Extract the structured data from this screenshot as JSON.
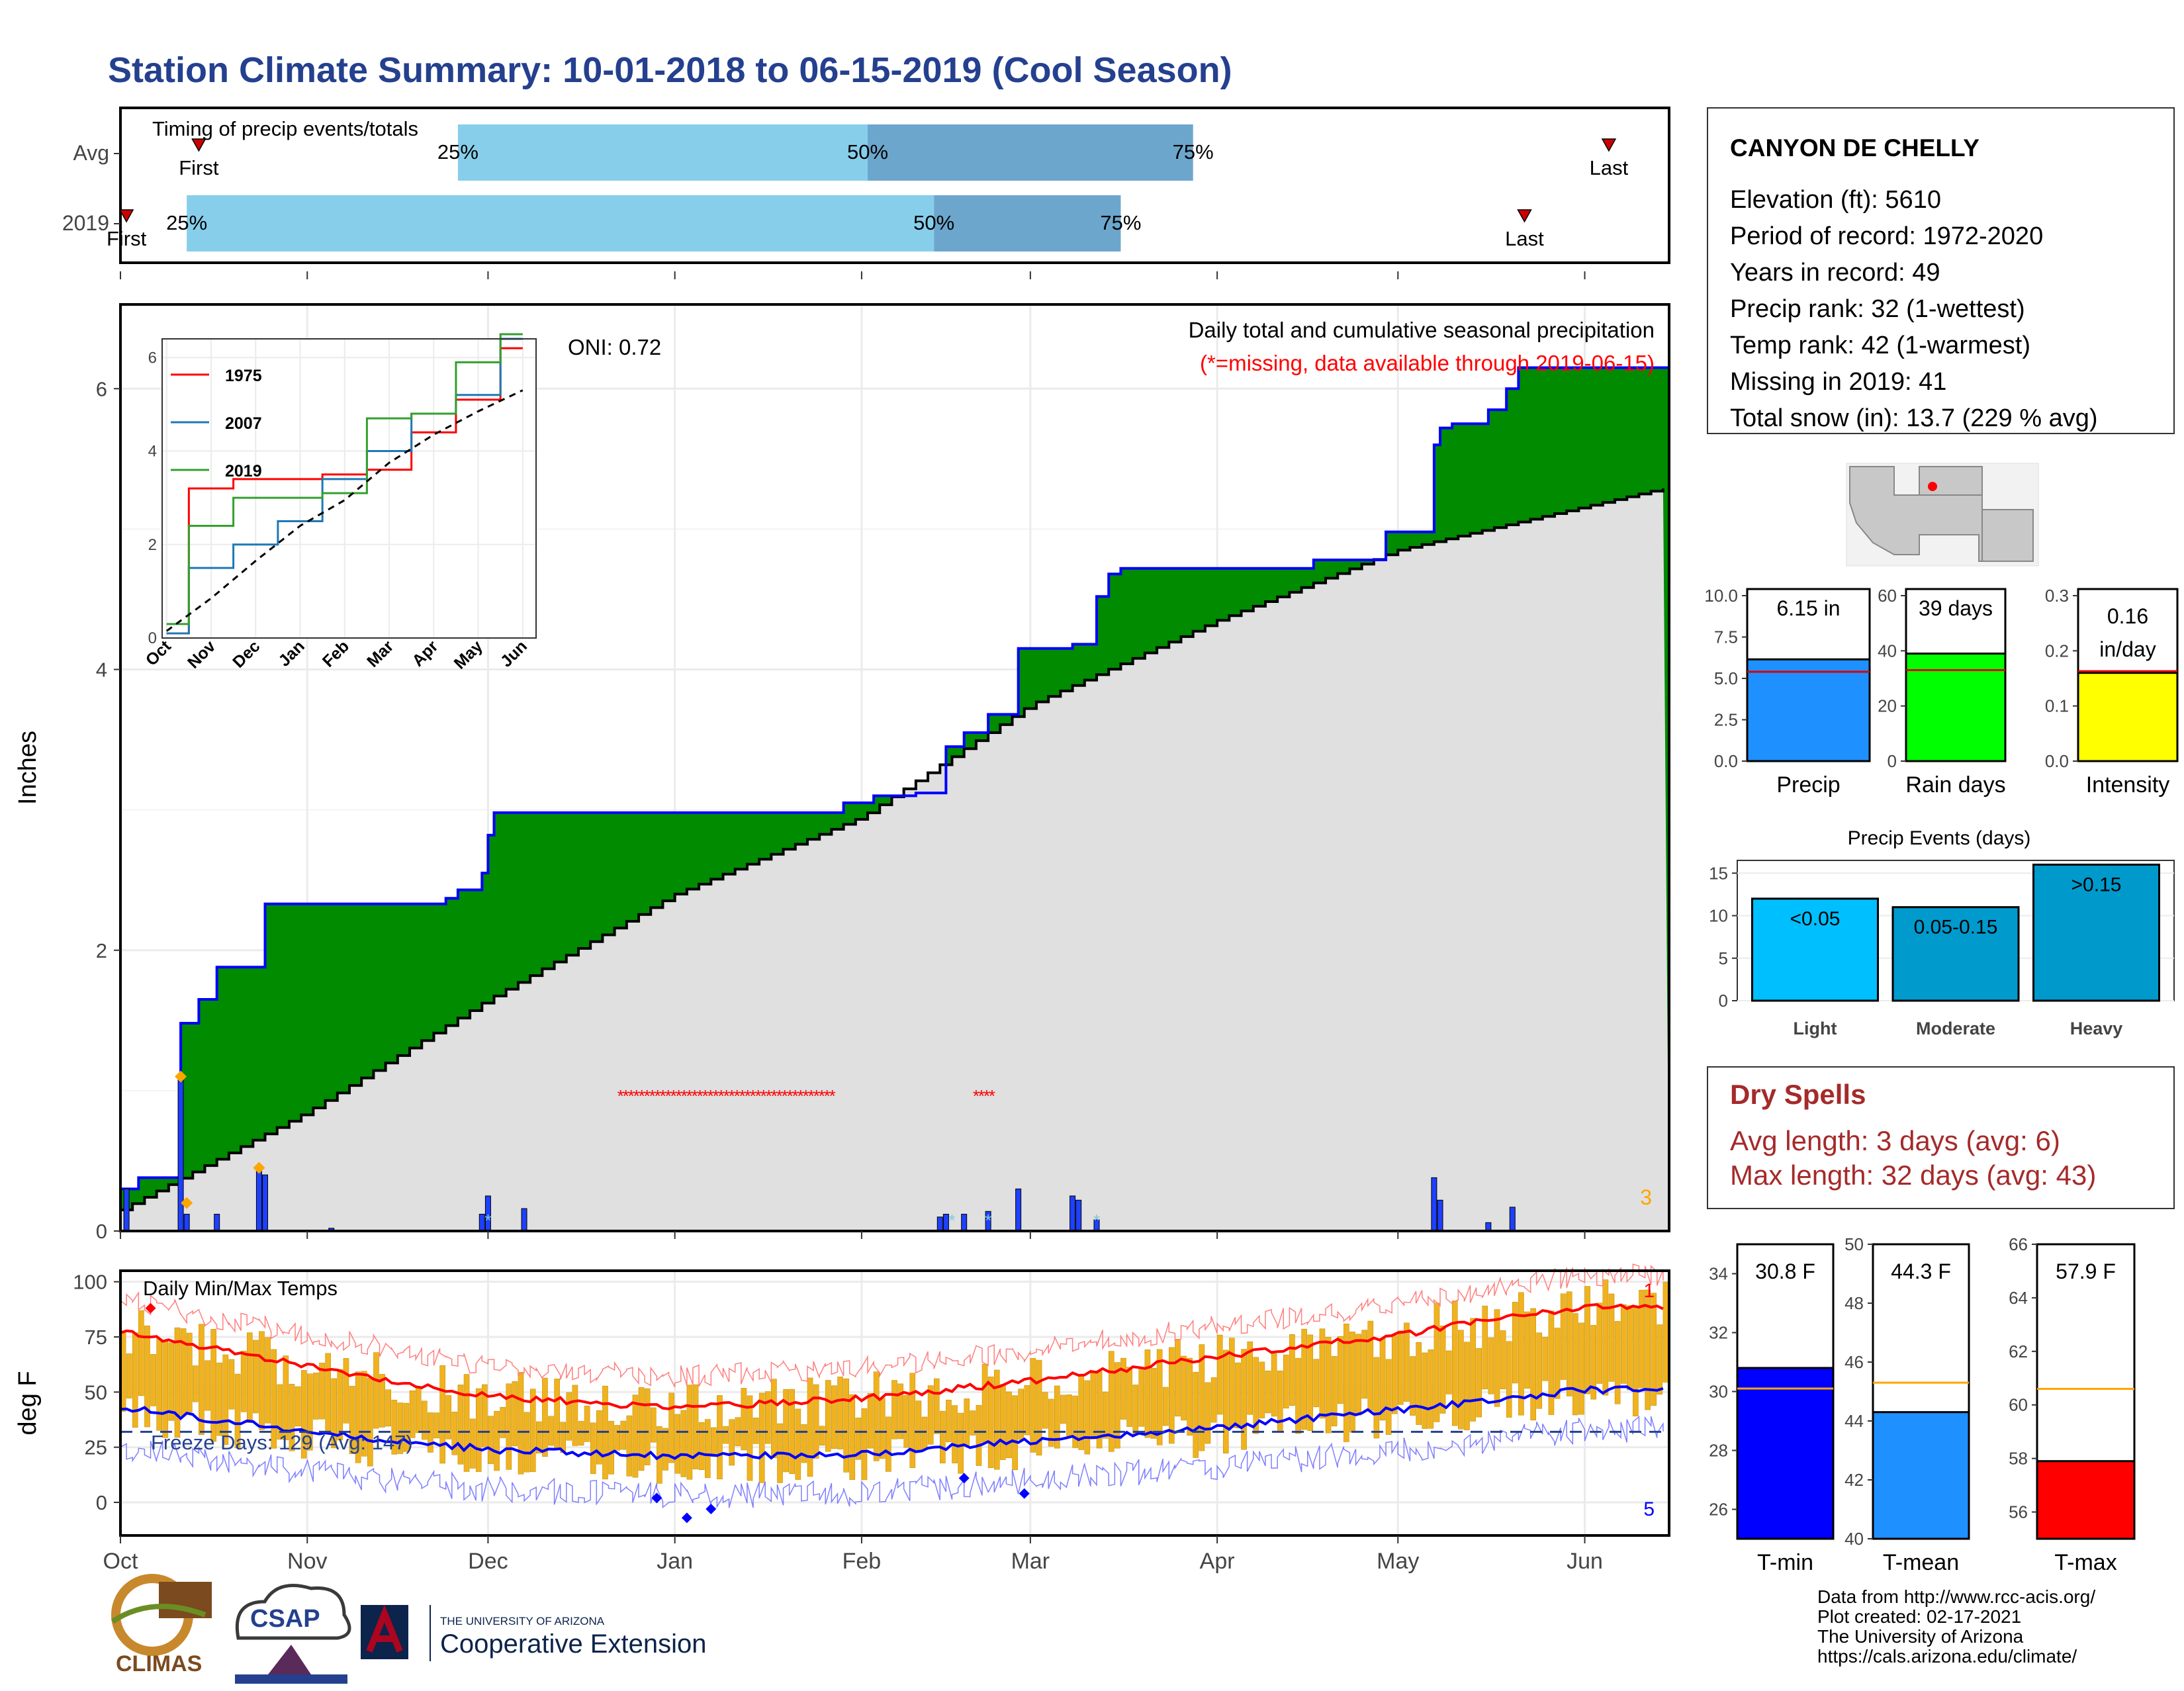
{
  "title": "Station Climate Summary: 10-01-2018 to 06-15-2019 (Cool Season)",
  "colors": {
    "title": "#24408E",
    "light_blue": "#87CEEB",
    "mid_blue": "#6CA6CD",
    "green": "#008B00",
    "gray_fill": "#E0E0E0",
    "blue_line": "#0000FF",
    "red": "#FF0000",
    "orange": "#FFA500",
    "temp_bar": "#F0B21F",
    "dark_red_text": "#A52A2A"
  },
  "timing": {
    "label": "Timing of precip events/totals",
    "rows": [
      {
        "name": "Avg",
        "first_label": "First",
        "last_label": "Last",
        "first_date": "2018-10-14",
        "p25": "2018-11-26",
        "p50": "2019-02-02",
        "p75": "2019-03-28",
        "last_date": "2019-06-05"
      },
      {
        "name": "2019",
        "first_label": "First",
        "last_label": "Last",
        "first_date": "2018-10-02",
        "p25": "2018-10-12",
        "p50": "2019-02-13",
        "p75": "2019-03-16",
        "last_date": "2019-05-22"
      }
    ],
    "pct_labels": [
      "25%",
      "50%",
      "75%"
    ]
  },
  "precip_chart": {
    "ylabel": "Inches",
    "annotation_title": "Daily total and cumulative seasonal precipitation",
    "annotation_missing": "(*=missing, data available through 2019-06-15)",
    "oni": "ONI: 0.72",
    "corner_count": "3",
    "yticks": [
      "0",
      "2",
      "4",
      "6"
    ]
  },
  "inset": {
    "legend": [
      "1975",
      "2007",
      "2019"
    ],
    "legend_colors": [
      "#FF0000",
      "#1F78B4",
      "#33A02C"
    ],
    "yticks": [
      "0",
      "2",
      "4",
      "6"
    ],
    "months": [
      "Oct",
      "Nov",
      "Dec",
      "Jan",
      "Feb",
      "Mar",
      "Apr",
      "May",
      "Jun"
    ]
  },
  "temp_chart": {
    "label": "Daily Min/Max Temps",
    "ylabel": "deg F",
    "freeze_label": "Freeze Days: 129 (Avg: 147)",
    "yticks": [
      "0",
      "25",
      "50",
      "75",
      "100"
    ],
    "corner_top": "1",
    "corner_bottom": "5"
  },
  "x_months": [
    "Oct",
    "Nov",
    "Dec",
    "Jan",
    "Feb",
    "Mar",
    "Apr",
    "May",
    "Jun"
  ],
  "station": {
    "name": "CANYON DE CHELLY",
    "lines": [
      "Elevation (ft): 5610",
      "Period of record: 1972-2020",
      "Years in record: 49",
      "Precip rank: 32 (1-wettest)",
      "Temp rank: 42 (1-warmest)",
      "Missing in 2019: 41",
      "Total snow (in): 13.7 (229 % avg)"
    ]
  },
  "mini_bars": [
    {
      "name": "Precip",
      "value_label": "6.15 in",
      "value": 6.15,
      "avg": 5.4,
      "max": 10.0,
      "yticks": [
        "0.0",
        "2.5",
        "5.0",
        "7.5",
        "10.0"
      ],
      "color": "#1E90FF"
    },
    {
      "name": "Rain days",
      "value_label": "39 days",
      "value": 39,
      "avg": 33,
      "max": 60,
      "yticks": [
        "0",
        "20",
        "40",
        "60"
      ],
      "color": "#00FF00"
    },
    {
      "name": "Intensity",
      "value_label": "0.16 in/day",
      "value": 0.16,
      "avg": 0.163,
      "max": 0.3,
      "yticks": [
        "0.0",
        "0.1",
        "0.2",
        "0.3"
      ],
      "color": "#FFFF00"
    }
  ],
  "precip_events": {
    "title": "Precip Events (days)",
    "yticks": [
      "0",
      "5",
      "10",
      "15"
    ],
    "categories": [
      "Light",
      "Moderate",
      "Heavy"
    ],
    "bar_labels": [
      "<0.05",
      "0.05-0.15",
      ">0.15"
    ],
    "values": [
      12,
      11,
      16
    ],
    "colors": [
      "#00BFFF",
      "#009ACD",
      "#0099CC"
    ]
  },
  "dry_spells": {
    "title": "Dry Spells",
    "lines": [
      "Avg length: 3 days (avg: 6)",
      "Max length: 32 days (avg: 43)"
    ]
  },
  "temp_bars": [
    {
      "name": "T-min",
      "value_label": "30.8 F",
      "value": 30.8,
      "avg": 30.1,
      "min": 25,
      "max": 35,
      "yticks": [
        "26",
        "28",
        "30",
        "32",
        "34"
      ],
      "color": "#0000FF"
    },
    {
      "name": "T-mean",
      "value_label": "44.3 F",
      "value": 44.3,
      "avg": 45.3,
      "min": 40,
      "max": 50,
      "yticks": [
        "40",
        "42",
        "44",
        "46",
        "48",
        "50"
      ],
      "color": "#1E90FF"
    },
    {
      "name": "T-max",
      "value_label": "57.9 F",
      "value": 57.9,
      "avg": 60.6,
      "min": 55,
      "max": 66,
      "yticks": [
        "56",
        "58",
        "60",
        "62",
        "64",
        "66"
      ],
      "color": "#FF0000"
    }
  ],
  "footer": {
    "lines": [
      "Data from http://www.rcc-acis.org/",
      "Plot created: 02-17-2021",
      "The University of Arizona",
      "https://cals.arizona.edu/climate/"
    ]
  },
  "logos": {
    "climas": "CLIMAS",
    "csap": "CSAP",
    "ua_small": "THE UNIVERSITY OF ARIZONA",
    "ua_big": "Cooperative Extension"
  },
  "chart_data": [
    {
      "type": "line",
      "title": "Daily total and cumulative seasonal precipitation",
      "ylabel": "Inches",
      "ylim": [
        0,
        6.6
      ],
      "x_range": [
        "2018-10-01",
        "2019-06-15"
      ],
      "series": [
        {
          "x": [
            "2018-10-01",
            "2018-10-04",
            "2018-10-10",
            "2018-10-11",
            "2018-10-14",
            "2018-10-17",
            "2018-10-23",
            "2018-10-25",
            "2018-11-24",
            "2018-11-26",
            "2018-11-30",
            "2018-12-01",
            "2018-12-02",
            "2018-12-07",
            "2019-01-29",
            "2019-02-03",
            "2019-02-10",
            "2019-02-15",
            "2019-02-18",
            "2019-02-22",
            "2019-02-24",
            "2019-02-27",
            "2019-03-08",
            "2019-03-12",
            "2019-03-14",
            "2019-03-16",
            "2019-04-17",
            "2019-04-29",
            "2019-05-07",
            "2019-05-08",
            "2019-05-10",
            "2019-05-16",
            "2019-05-19",
            "2019-05-21",
            "2019-06-15"
          ],
          "values": [
            0.3,
            0.38,
            0.38,
            1.48,
            1.65,
            1.88,
            1.88,
            2.33,
            2.37,
            2.43,
            2.55,
            2.82,
            2.98,
            2.98,
            3.05,
            3.1,
            3.12,
            3.45,
            3.55,
            3.68,
            3.68,
            4.15,
            4.18,
            4.52,
            4.68,
            4.72,
            4.78,
            4.98,
            5.6,
            5.72,
            5.75,
            5.85,
            6.0,
            6.15,
            6.15
          ]
        },
        {
          "name": "Avg",
          "x": [
            "2018-10-01",
            "2018-11-01",
            "2018-12-01",
            "2019-01-01",
            "2019-02-01",
            "2019-03-01",
            "2019-04-01",
            "2019-05-01",
            "2019-06-15"
          ],
          "values": [
            0.15,
            0.85,
            1.65,
            2.4,
            2.95,
            3.75,
            4.35,
            4.85,
            5.3
          ]
        }
      ],
      "missing_dates": [
        "2018-12-23 to 2019-01-28",
        "2019-02-20 to 2019-02-22"
      ],
      "daily_bars": {
        "x": [
          "2018-10-02",
          "2018-10-11",
          "2018-10-12",
          "2018-10-17",
          "2018-10-24",
          "2018-10-25",
          "2018-11-05",
          "2018-11-30",
          "2018-12-01",
          "2018-12-07",
          "2019-02-14",
          "2019-02-15",
          "2019-02-18",
          "2019-02-22",
          "2019-02-27",
          "2019-03-08",
          "2019-03-09",
          "2019-03-12",
          "2019-05-07",
          "2019-05-08",
          "2019-05-16",
          "2019-05-20"
        ],
        "values": [
          0.3,
          1.1,
          0.12,
          0.12,
          0.45,
          0.4,
          0.02,
          0.12,
          0.25,
          0.16,
          0.1,
          0.12,
          0.12,
          0.14,
          0.3,
          0.25,
          0.22,
          0.08,
          0.38,
          0.22,
          0.06,
          0.17
        ]
      }
    },
    {
      "type": "line",
      "xlabel": "",
      "ylim": [
        0,
        6.4
      ],
      "series": [
        {
          "name": "1975",
          "x": [
            "Oct",
            "Nov",
            "Dec",
            "Jan",
            "Feb",
            "Mar",
            "Apr",
            "May",
            "Jun"
          ],
          "values": [
            0.1,
            3.2,
            3.4,
            3.4,
            3.5,
            3.6,
            4.4,
            5.1,
            6.2
          ]
        },
        {
          "name": "2007",
          "x": [
            "Oct",
            "Nov",
            "Dec",
            "Jan",
            "Feb",
            "Mar",
            "Apr",
            "May",
            "Jun"
          ],
          "values": [
            0.1,
            1.5,
            2.0,
            2.5,
            3.4,
            4.0,
            4.8,
            5.2,
            6.4
          ]
        },
        {
          "name": "2019",
          "x": [
            "Oct",
            "Nov",
            "Dec",
            "Jan",
            "Feb",
            "Mar",
            "Apr",
            "May",
            "Jun"
          ],
          "values": [
            0.3,
            2.4,
            3.0,
            3.0,
            3.1,
            4.7,
            4.8,
            5.9,
            6.5
          ]
        }
      ]
    },
    {
      "type": "bar",
      "title": "Daily Min/Max Temps",
      "ylabel": "deg F",
      "ylim": [
        -15,
        105
      ],
      "freeze_threshold": 32,
      "series": [
        {
          "name": "avg_max",
          "x": [
            "Oct",
            "Nov",
            "Dec",
            "Jan",
            "Feb",
            "Mar",
            "Apr",
            "May",
            "Jun"
          ],
          "values": [
            78,
            62,
            48,
            43,
            47,
            55,
            66,
            76,
            89
          ]
        },
        {
          "name": "avg_min",
          "x": [
            "Oct",
            "Nov",
            "Dec",
            "Jan",
            "Feb",
            "Mar",
            "Apr",
            "May",
            "Jun"
          ],
          "values": [
            43,
            32,
            24,
            21,
            22,
            28,
            34,
            42,
            51
          ]
        }
      ]
    },
    {
      "type": "bar",
      "categories": [
        "Precip",
        "Rain days",
        "Intensity"
      ],
      "values": [
        6.15,
        39,
        0.16
      ]
    },
    {
      "type": "bar",
      "title": "Precip Events (days)",
      "categories": [
        "Light",
        "Moderate",
        "Heavy"
      ],
      "values": [
        12,
        11,
        16
      ]
    },
    {
      "type": "bar",
      "categories": [
        "T-min",
        "T-mean",
        "T-max"
      ],
      "values": [
        30.8,
        44.3,
        57.9
      ]
    }
  ]
}
